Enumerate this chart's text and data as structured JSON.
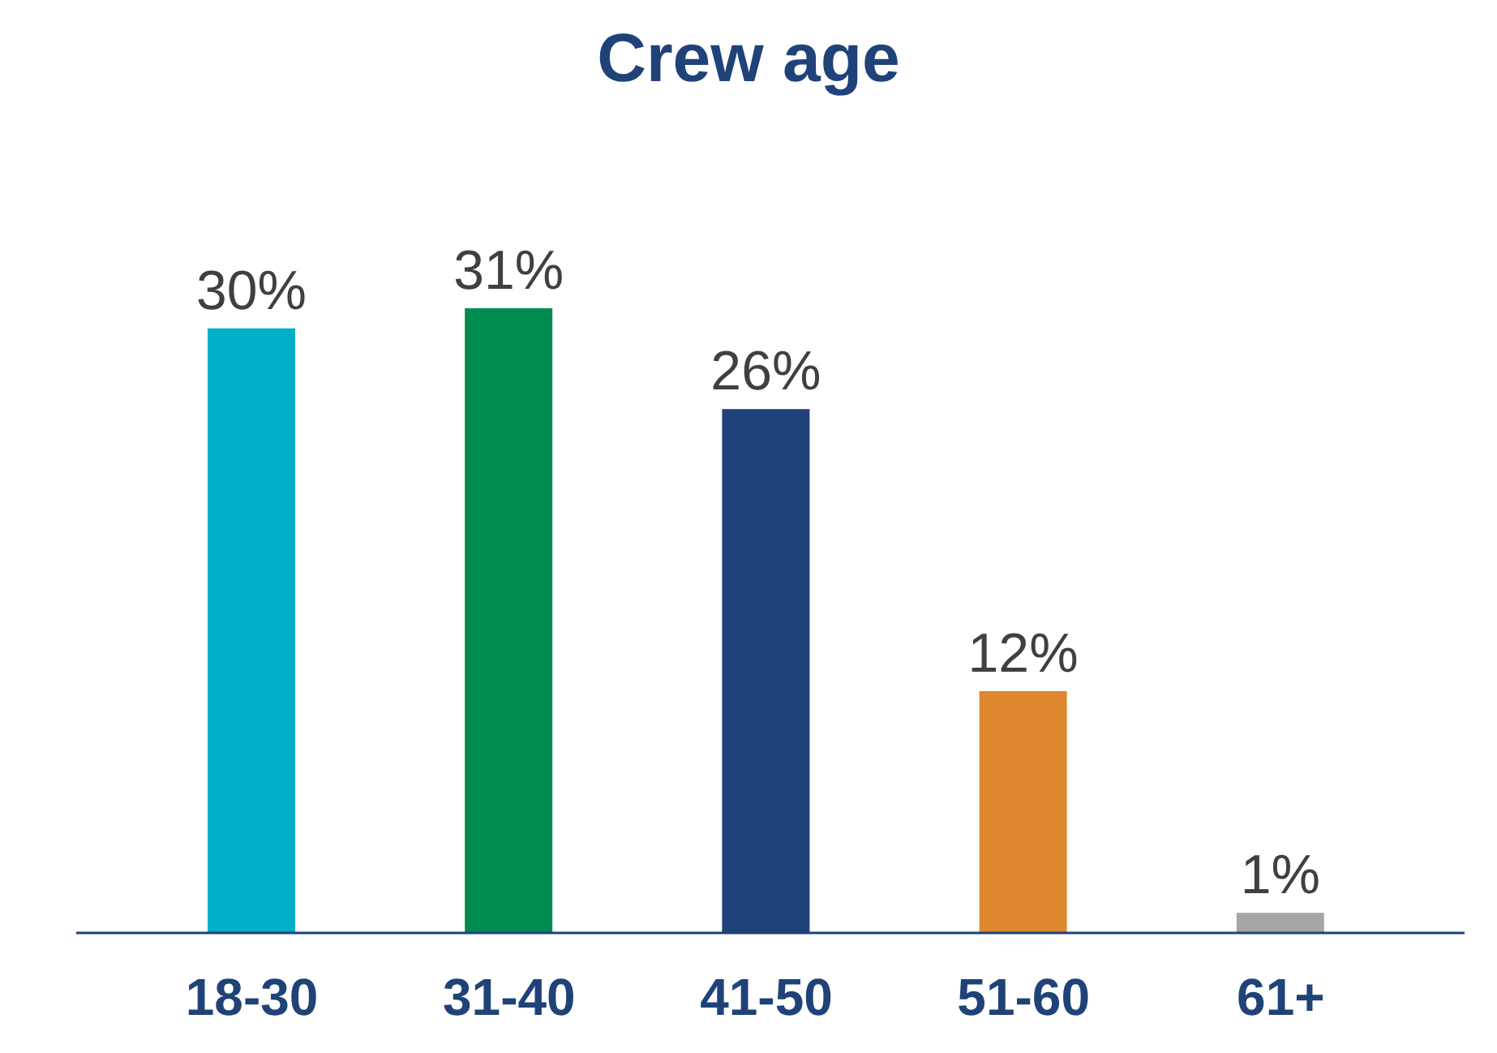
{
  "chart_data": {
    "type": "bar",
    "title": "Crew age",
    "categories": [
      "18-30",
      "31-40",
      "41-50",
      "51-60",
      "61+"
    ],
    "values": [
      30,
      31,
      26,
      12,
      1
    ],
    "colors": [
      "#00b0c8",
      "#008c50",
      "#1f4278",
      "#e08830",
      "#a6a6a6"
    ],
    "tick_labels": "x",
    "data_labels": true,
    "value_labels": [
      "30%",
      "31%",
      "26%",
      "12%",
      "1%"
    ],
    "grid": false,
    "legend": false
  }
}
